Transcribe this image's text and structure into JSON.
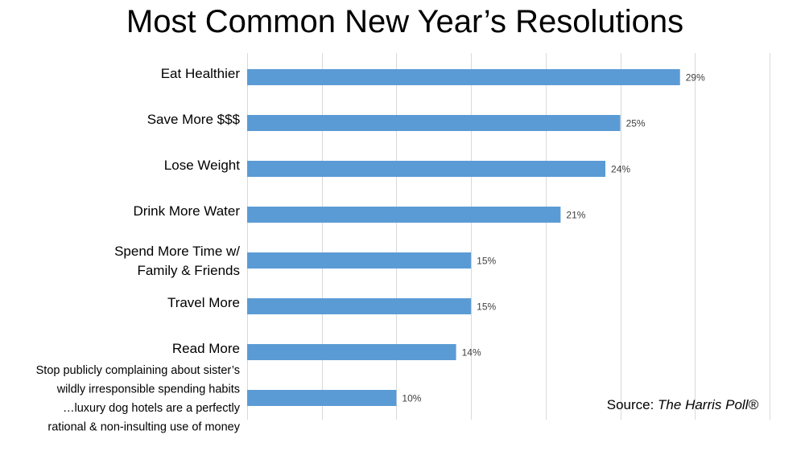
{
  "chart_data": {
    "type": "bar",
    "orientation": "horizontal",
    "title": "Most Common New Year’s Resolutions",
    "categories": [
      "Eat Healthier",
      "Save More $$$",
      "Lose Weight",
      "Drink More Water",
      "Spend More Time w/ Family & Friends",
      "Travel More",
      "Read More",
      "Stop publicly complaining about sister’s wildly irresponsible spending habits …luxury dog hotels are a perfectly rational & non-insulting use of money"
    ],
    "category_lines": [
      [
        "Eat Healthier"
      ],
      [
        "Save More $$$"
      ],
      [
        "Lose Weight"
      ],
      [
        "Drink More Water"
      ],
      [
        "Spend More Time w/",
        "Family & Friends"
      ],
      [
        "Travel More"
      ],
      [
        "Read More"
      ],
      [
        "Stop publicly complaining about sister’s",
        "wildly irresponsible spending habits",
        "…luxury dog hotels are a perfectly",
        "rational & non-insulting use of money"
      ]
    ],
    "values": [
      29,
      25,
      24,
      21,
      15,
      15,
      14,
      10
    ],
    "value_labels": [
      "29%",
      "25%",
      "24%",
      "21%",
      "15%",
      "15%",
      "14%",
      "10%"
    ],
    "xlim": [
      0,
      35
    ],
    "x_gridline_step": 5,
    "grid": true,
    "bar_color": "#5B9BD5",
    "gridline_color": "#D9D9D9",
    "source_prefix": "Source: ",
    "source_name": "The Harris Poll®"
  }
}
